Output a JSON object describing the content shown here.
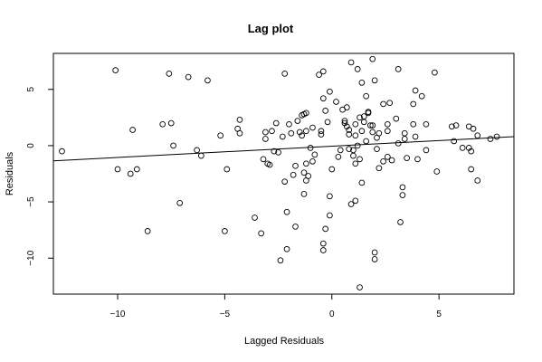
{
  "chart_data": {
    "type": "scatter",
    "title": "Lag plot",
    "xlabel": "Lagged Residuals",
    "ylabel": "Residuals",
    "xlim": [
      -13.0,
      8.5
    ],
    "ylim": [
      -13.2,
      8.2
    ],
    "xticks": [
      -10,
      -5,
      0,
      5
    ],
    "yticks": [
      -10,
      -5,
      0,
      5
    ],
    "xtick_labels": [
      "−10",
      "−5",
      "0",
      "5"
    ],
    "ytick_labels": [
      "−10",
      "−5",
      "0",
      "5"
    ],
    "grid": false,
    "legend": "none",
    "marker": "open-circle",
    "point_color": "#000000",
    "regression_line": {
      "x": [
        -13.0,
        8.5
      ],
      "y": [
        -1.35,
        0.8
      ]
    },
    "points": [
      [
        -12.6,
        -0.5
      ],
      [
        -10.1,
        6.7
      ],
      [
        -10.0,
        -2.1
      ],
      [
        -9.4,
        -2.5
      ],
      [
        -9.3,
        1.4
      ],
      [
        -9.1,
        -2.1
      ],
      [
        -8.6,
        -7.6
      ],
      [
        -7.9,
        1.9
      ],
      [
        -7.6,
        6.4
      ],
      [
        -7.5,
        2.0
      ],
      [
        -7.4,
        0.0
      ],
      [
        -7.1,
        -5.1
      ],
      [
        -6.7,
        6.1
      ],
      [
        -6.3,
        -0.4
      ],
      [
        -6.1,
        -0.9
      ],
      [
        -5.8,
        5.8
      ],
      [
        -5.2,
        0.9
      ],
      [
        -5.0,
        -7.6
      ],
      [
        -4.9,
        -2.1
      ],
      [
        -4.4,
        1.5
      ],
      [
        -4.3,
        1.1
      ],
      [
        -4.3,
        2.3
      ],
      [
        -3.6,
        -6.4
      ],
      [
        -3.3,
        -7.8
      ],
      [
        -3.2,
        -1.2
      ],
      [
        -3.1,
        0.6
      ],
      [
        -3.1,
        1.2
      ],
      [
        -3.0,
        -1.6
      ],
      [
        -2.9,
        -1.7
      ],
      [
        -2.8,
        1.3
      ],
      [
        -2.7,
        -0.5
      ],
      [
        -2.6,
        2.0
      ],
      [
        -2.5,
        -0.6
      ],
      [
        -2.4,
        -10.2
      ],
      [
        -2.3,
        0.8
      ],
      [
        -2.2,
        6.4
      ],
      [
        -2.2,
        -3.2
      ],
      [
        -2.1,
        -5.9
      ],
      [
        -2.1,
        -9.2
      ],
      [
        -2.0,
        1.9
      ],
      [
        -1.9,
        1.1
      ],
      [
        -1.8,
        -2.6
      ],
      [
        -1.7,
        -1.8
      ],
      [
        -1.7,
        -7.2
      ],
      [
        -1.6,
        2.2
      ],
      [
        -1.5,
        1.2
      ],
      [
        -1.4,
        2.7
      ],
      [
        -1.4,
        0.9
      ],
      [
        -1.3,
        -2.4
      ],
      [
        -1.3,
        2.8
      ],
      [
        -1.3,
        -4.3
      ],
      [
        -1.2,
        2.9
      ],
      [
        -1.2,
        1.3
      ],
      [
        -1.2,
        -3.1
      ],
      [
        -1.2,
        -1.6
      ],
      [
        -1.1,
        -2.7
      ],
      [
        -1.0,
        -0.2
      ],
      [
        -0.9,
        1.6
      ],
      [
        -0.9,
        -1.4
      ],
      [
        -0.8,
        -0.8
      ],
      [
        -0.6,
        6.3
      ],
      [
        -0.5,
        1.3
      ],
      [
        -0.5,
        1.0
      ],
      [
        -0.4,
        -8.7
      ],
      [
        -0.4,
        6.6
      ],
      [
        -0.4,
        4.2
      ],
      [
        -0.4,
        -9.3
      ],
      [
        -0.3,
        -7.4
      ],
      [
        -0.3,
        3.1
      ],
      [
        -0.2,
        2.1
      ],
      [
        -0.1,
        4.8
      ],
      [
        -0.1,
        -6.2
      ],
      [
        -0.1,
        -4.5
      ],
      [
        0.0,
        -2.1
      ],
      [
        0.2,
        3.9
      ],
      [
        0.3,
        -1.0
      ],
      [
        0.4,
        -0.4
      ],
      [
        0.5,
        3.2
      ],
      [
        0.6,
        2.2
      ],
      [
        0.6,
        2.0
      ],
      [
        0.7,
        1.7
      ],
      [
        0.7,
        3.4
      ],
      [
        0.8,
        1.4
      ],
      [
        0.8,
        1.0
      ],
      [
        0.8,
        -0.3
      ],
      [
        0.9,
        7.4
      ],
      [
        0.9,
        -5.2
      ],
      [
        1.0,
        -0.9
      ],
      [
        1.0,
        -0.4
      ],
      [
        1.1,
        1.9
      ],
      [
        1.1,
        -1.6
      ],
      [
        1.1,
        0.9
      ],
      [
        1.1,
        -4.9
      ],
      [
        1.2,
        6.8
      ],
      [
        1.2,
        0.0
      ],
      [
        1.3,
        -12.6
      ],
      [
        1.3,
        2.5
      ],
      [
        1.3,
        -1.2
      ],
      [
        1.4,
        5.6
      ],
      [
        1.4,
        1.3
      ],
      [
        1.4,
        -3.3
      ],
      [
        1.5,
        2.1
      ],
      [
        1.5,
        2.6
      ],
      [
        1.6,
        0.4
      ],
      [
        1.6,
        4.4
      ],
      [
        1.7,
        2.9
      ],
      [
        1.7,
        3.0
      ],
      [
        1.8,
        1.8
      ],
      [
        1.9,
        1.2
      ],
      [
        1.9,
        1.8
      ],
      [
        1.9,
        7.7
      ],
      [
        2.0,
        5.8
      ],
      [
        2.0,
        -9.5
      ],
      [
        2.0,
        -10.1
      ],
      [
        2.1,
        0.7
      ],
      [
        2.1,
        -0.3
      ],
      [
        2.2,
        1.1
      ],
      [
        2.2,
        -2.0
      ],
      [
        2.4,
        -1.4
      ],
      [
        2.4,
        3.7
      ],
      [
        2.6,
        1.3
      ],
      [
        2.6,
        -1.0
      ],
      [
        2.6,
        1.9
      ],
      [
        2.7,
        3.8
      ],
      [
        2.8,
        -1.3
      ],
      [
        3.0,
        2.4
      ],
      [
        3.1,
        6.8
      ],
      [
        3.1,
        0.2
      ],
      [
        3.2,
        -6.8
      ],
      [
        3.3,
        -4.4
      ],
      [
        3.3,
        -3.7
      ],
      [
        3.4,
        0.6
      ],
      [
        3.4,
        1.1
      ],
      [
        3.5,
        -1.1
      ],
      [
        3.8,
        1.9
      ],
      [
        3.8,
        3.7
      ],
      [
        3.9,
        4.9
      ],
      [
        3.9,
        0.8
      ],
      [
        4.0,
        -1.2
      ],
      [
        4.2,
        4.4
      ],
      [
        4.4,
        -0.4
      ],
      [
        4.4,
        1.9
      ],
      [
        4.8,
        6.5
      ],
      [
        4.9,
        -2.3
      ],
      [
        5.6,
        1.7
      ],
      [
        5.7,
        0.4
      ],
      [
        5.8,
        1.8
      ],
      [
        6.1,
        -0.2
      ],
      [
        6.4,
        1.7
      ],
      [
        6.4,
        -0.2
      ],
      [
        6.5,
        -0.5
      ],
      [
        6.5,
        -2.1
      ],
      [
        6.6,
        1.5
      ],
      [
        6.8,
        -3.1
      ],
      [
        6.8,
        0.9
      ],
      [
        7.4,
        0.6
      ],
      [
        7.7,
        0.8
      ]
    ]
  }
}
